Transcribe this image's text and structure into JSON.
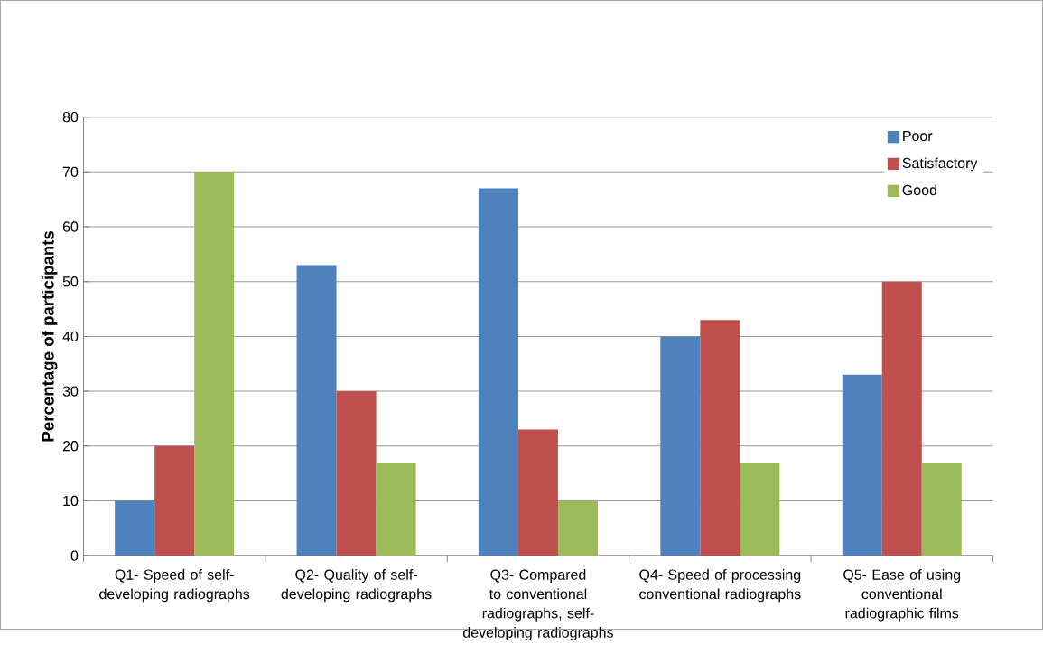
{
  "chart_data": {
    "type": "bar",
    "ylabel": "Percentage of participants",
    "categories": [
      "Q1- Speed of self-developing radiographs",
      "Q2- Quality of self-developing radiographs",
      "Q3- Compared to conventional radiographs, self-developing radiographs",
      "Q4- Speed of processing conventional radiographs",
      "Q5- Ease of using conventional radiographic films"
    ],
    "series": [
      {
        "name": "Poor",
        "color": "#4f81bd",
        "values": [
          10,
          53,
          67,
          40,
          33
        ]
      },
      {
        "name": "Satisfactory",
        "color": "#c0504d",
        "values": [
          20,
          30,
          23,
          43,
          50
        ]
      },
      {
        "name": "Good",
        "color": "#9bbb59",
        "values": [
          70,
          17,
          10,
          17,
          17
        ]
      }
    ],
    "ylim": [
      0,
      80
    ],
    "yticks": [
      0,
      10,
      20,
      30,
      40,
      50,
      60,
      70,
      80
    ],
    "grid": "y",
    "legend": "top right"
  }
}
